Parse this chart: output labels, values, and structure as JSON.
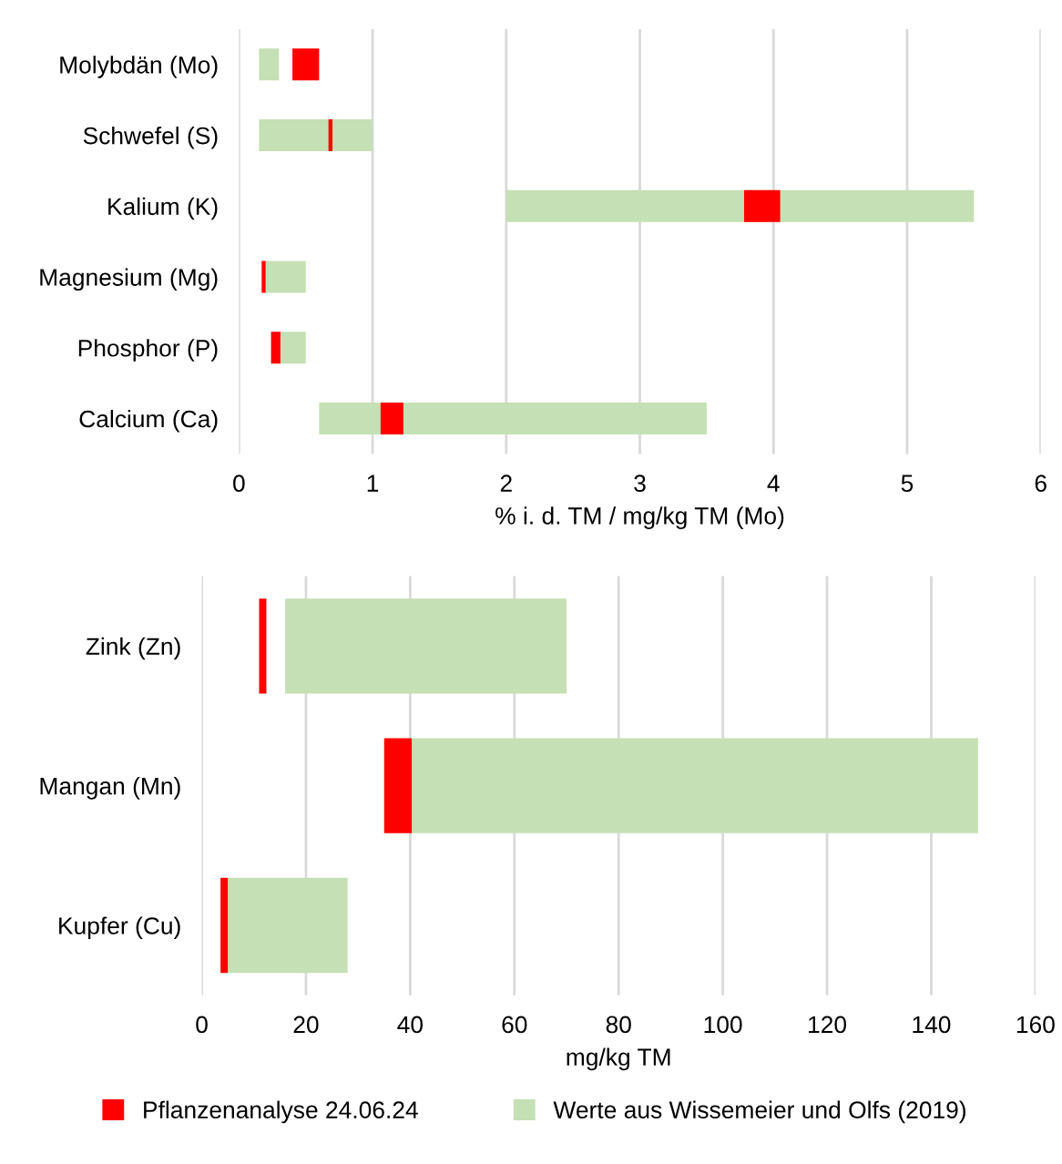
{
  "chart_data": [
    {
      "type": "bar",
      "orientation": "horizontal",
      "xlabel": "% i. d. TM / mg/kg TM (Mo)",
      "categories": [
        "Molybdän (Mo)",
        "Schwefel (S)",
        "Kalium (K)",
        "Magnesium (Mg)",
        "Phosphor (P)",
        "Calcium (Ca)"
      ],
      "series": [
        {
          "color": "#c5e0b4",
          "base": [
            0.15,
            0.15,
            2.0,
            0.2,
            0.3,
            0.6
          ],
          "values": [
            0.15,
            0.85,
            3.5,
            0.3,
            0.2,
            2.9
          ]
        },
        {
          "color": "#ff0000",
          "base": [
            0.4,
            0.67,
            3.78,
            0.17,
            0.24,
            1.06
          ],
          "values": [
            0.2,
            0.03,
            0.27,
            0.03,
            0.07,
            0.17
          ]
        }
      ],
      "xlim": [
        0,
        6
      ],
      "xticks": [
        0,
        1,
        2,
        3,
        4,
        5,
        6
      ],
      "grid": "x",
      "legend": false
    },
    {
      "type": "bar",
      "orientation": "horizontal",
      "xlabel": "mg/kg TM",
      "categories": [
        "Zink (Zn)",
        "Mangan (Mn)",
        "Kupfer (Cu)"
      ],
      "series": [
        {
          "name": "Werte aus Wissemeier und Olfs (2019)",
          "color": "#c5e0b4",
          "base": [
            16,
            40,
            5
          ],
          "values": [
            54,
            109,
            23
          ]
        },
        {
          "name": "Pflanzenanalyse 24.06.24",
          "color": "#ff0000",
          "base": [
            11,
            35,
            3.6
          ],
          "values": [
            1.4,
            5.3,
            1.4
          ]
        }
      ],
      "xlim": [
        0,
        160
      ],
      "xticks": [
        0,
        20,
        40,
        60,
        80,
        100,
        120,
        140,
        160
      ],
      "grid": "x",
      "legend": "bottom"
    }
  ]
}
